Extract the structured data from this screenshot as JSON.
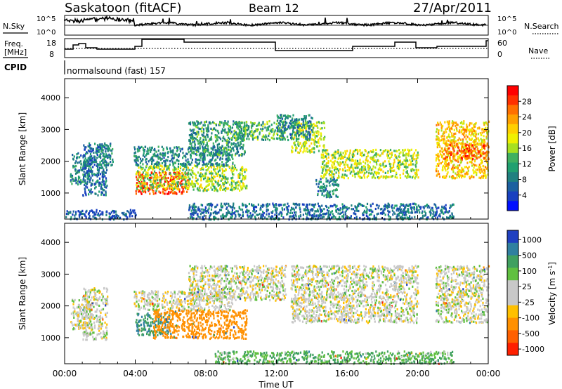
{
  "header": {
    "station": "Saskatoon (fitACF)",
    "beam": "Beam 12",
    "date": "27/Apr/2011"
  },
  "noise_panel": {
    "left_label": "N.Sky",
    "right_label": "N.Search",
    "left_ticks": [
      "10^5",
      "10^0"
    ],
    "right_ticks": [
      "10^5",
      "10^0"
    ]
  },
  "freq_panel": {
    "left_label_line1": "Freq.",
    "left_label_line2": "[MHz]",
    "right_label": "Nave",
    "left_ticks": [
      "18",
      "8"
    ],
    "right_ticks": [
      "60",
      "0"
    ]
  },
  "cpid": {
    "label": "CPID",
    "value": "normalsound (fast) 157"
  },
  "x_axis": {
    "title": "Time UT",
    "ticks": [
      "00:00",
      "04:00",
      "08:00",
      "12:00",
      "16:00",
      "20:00",
      "00:00"
    ]
  },
  "chart_data": [
    {
      "type": "heatmap",
      "name": "power",
      "ylabel": "Slant Range [km]",
      "yticks": [
        1000,
        2000,
        3000,
        4000
      ],
      "ylim": [
        180,
        4600
      ],
      "xlim": [
        0,
        24
      ],
      "colorbar": {
        "title": "Power [dB]",
        "ticks": [
          "28",
          "24",
          "20",
          "16",
          "12",
          "8",
          "4"
        ],
        "colors": [
          "#ff0000",
          "#ff3000",
          "#ff7000",
          "#ffa000",
          "#ffd000",
          "#f0f000",
          "#a8e020",
          "#40b060",
          "#20a070",
          "#208080",
          "#1c60a0",
          "#1840c0",
          "#0010ff"
        ]
      },
      "regions": [
        {
          "t0": 0.3,
          "t1": 1.5,
          "r0": 1300,
          "r1": 2300,
          "v": 8
        },
        {
          "t0": 1.0,
          "t1": 2.4,
          "r0": 950,
          "r1": 2600,
          "v": 6
        },
        {
          "t0": 1.8,
          "t1": 2.7,
          "r0": 1900,
          "r1": 2600,
          "v": 8
        },
        {
          "t0": 4.0,
          "t1": 7.0,
          "r0": 1000,
          "r1": 1700,
          "v": 28
        },
        {
          "t0": 4.0,
          "t1": 10.3,
          "r0": 1100,
          "r1": 1900,
          "v": 15
        },
        {
          "t0": 3.9,
          "t1": 9.5,
          "r0": 1900,
          "r1": 2500,
          "v": 8
        },
        {
          "t0": 7.0,
          "t1": 10.2,
          "r0": 2200,
          "r1": 3300,
          "v": 10
        },
        {
          "t0": 9.5,
          "t1": 12.5,
          "r0": 2700,
          "r1": 3300,
          "v": 12
        },
        {
          "t0": 12.8,
          "t1": 14.7,
          "r0": 2300,
          "r1": 3300,
          "v": 16
        },
        {
          "t0": 14.5,
          "t1": 20.0,
          "r0": 1500,
          "r1": 2400,
          "v": 16
        },
        {
          "t0": 14.2,
          "t1": 15.5,
          "r0": 900,
          "r1": 1500,
          "v": 8
        },
        {
          "t0": 12.0,
          "t1": 14.0,
          "r0": 2700,
          "r1": 3500,
          "v": 8
        },
        {
          "t0": 21.0,
          "t1": 24.0,
          "r0": 1500,
          "r1": 3300,
          "v": 20
        },
        {
          "t0": 21.5,
          "t1": 24.0,
          "r0": 2100,
          "r1": 2600,
          "v": 26
        },
        {
          "t0": 7.0,
          "t1": 22.0,
          "r0": 200,
          "r1": 700,
          "v": 6
        },
        {
          "t0": 0.0,
          "t1": 4.0,
          "r0": 200,
          "r1": 500,
          "v": 4
        }
      ]
    },
    {
      "type": "heatmap",
      "name": "velocity",
      "ylabel": "Slant Range [km]",
      "yticks": [
        1000,
        2000,
        3000,
        4000
      ],
      "ylim": [
        180,
        4600
      ],
      "xlim": [
        0,
        24
      ],
      "colorbar": {
        "title": "Velocity [m s^-1]",
        "ticks": [
          "1000",
          "500",
          "100",
          "25",
          "-25",
          "-100",
          "-500",
          "-1000"
        ],
        "colors": [
          "#2040c0",
          "#3080a0",
          "#40a060",
          "#60c040",
          "#c8c8c8",
          "#c8c8c8",
          "#ffc000",
          "#ff9000",
          "#ff6000",
          "#ff2000"
        ]
      },
      "regions": [
        {
          "t0": 0.3,
          "t1": 1.5,
          "r0": 1300,
          "r1": 2300,
          "v": 0
        },
        {
          "t0": 1.0,
          "t1": 2.4,
          "r0": 950,
          "r1": 2600,
          "v": 0
        },
        {
          "t0": 4.0,
          "t1": 6.0,
          "r0": 1100,
          "r1": 1800,
          "v": 300
        },
        {
          "t0": 5.0,
          "t1": 10.3,
          "r0": 1000,
          "r1": 1900,
          "v": -200
        },
        {
          "t0": 3.9,
          "t1": 9.5,
          "r0": 1900,
          "r1": 2500,
          "v": 0
        },
        {
          "t0": 7.0,
          "t1": 12.5,
          "r0": 2200,
          "r1": 3300,
          "v": 0
        },
        {
          "t0": 12.8,
          "t1": 20.0,
          "r0": 1500,
          "r1": 3300,
          "v": 0
        },
        {
          "t0": 21.0,
          "t1": 24.0,
          "r0": 1500,
          "r1": 3300,
          "v": 0
        },
        {
          "t0": 8.5,
          "t1": 22.0,
          "r0": 200,
          "r1": 600,
          "v": 60
        }
      ]
    }
  ]
}
